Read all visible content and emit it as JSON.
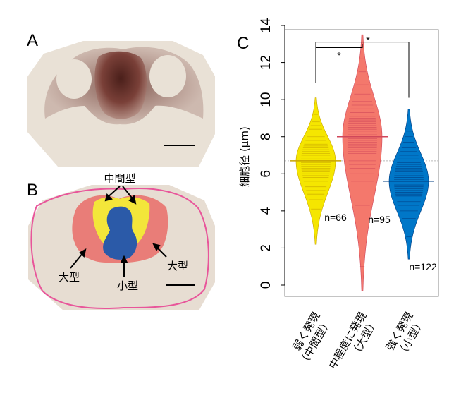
{
  "panels": {
    "a": "A",
    "b": "B",
    "c": "C"
  },
  "panel_b": {
    "label_middle": "中間型",
    "label_large_left": "大型",
    "label_large_right": "大型",
    "label_small": "小型"
  },
  "chart_data": {
    "type": "violin",
    "categories": [
      "弱く発現（中間型）",
      "中程度に発現（大型）",
      "強く発現（小型）"
    ],
    "category_lines": [
      [
        "弱く発現",
        "（中間型）"
      ],
      [
        "中程度に発現",
        "（大型）"
      ],
      [
        "強く発現",
        "（小型）"
      ]
    ],
    "ylabel": "細胞径 (μm)",
    "ylim": [
      0,
      14
    ],
    "yticks": [
      0,
      2,
      4,
      6,
      8,
      10,
      12,
      14
    ],
    "grand_mean": 6.7,
    "series": [
      {
        "category": "弱く発現（中間型）",
        "color": "#f5e600",
        "line_color": "#c8a400",
        "median": 6.7,
        "min": 2.2,
        "max": 10.1,
        "n_label": "n=66",
        "sample": [
          3.4,
          4.1,
          4.6,
          4.9,
          5.1,
          5.3,
          5.5,
          5.6,
          5.8,
          5.9,
          6.0,
          6.1,
          6.2,
          6.3,
          6.4,
          6.5,
          6.6,
          6.7,
          6.8,
          6.9,
          7.0,
          7.1,
          7.2,
          7.3,
          7.4,
          7.5,
          7.6,
          7.8,
          8.0,
          8.2,
          8.4,
          8.6,
          8.8,
          9.2,
          9.6
        ]
      },
      {
        "category": "中程度に発現（大型）",
        "color": "#f4786c",
        "line_color": "#d0475a",
        "median": 8.0,
        "min": -0.3,
        "max": 13.5,
        "n_label": "n=95",
        "sample": [
          1.0,
          4.3,
          5.6,
          6.0,
          6.3,
          6.5,
          6.7,
          6.9,
          7.1,
          7.2,
          7.3,
          7.4,
          7.5,
          7.6,
          7.7,
          7.8,
          7.9,
          8.0,
          8.1,
          8.2,
          8.3,
          8.4,
          8.5,
          8.6,
          8.7,
          8.8,
          8.9,
          9.0,
          9.1,
          9.3,
          9.5,
          9.7,
          9.9,
          10.3,
          10.8,
          11.5,
          12.2
        ]
      },
      {
        "category": "強く発現（小型）",
        "color": "#0077c8",
        "line_color": "#003c80",
        "median": 5.6,
        "min": 1.4,
        "max": 9.5,
        "n_label": "n=122",
        "sample": [
          2.6,
          3.6,
          4.0,
          4.3,
          4.5,
          4.7,
          4.8,
          4.9,
          5.0,
          5.1,
          5.2,
          5.3,
          5.4,
          5.5,
          5.6,
          5.7,
          5.8,
          5.9,
          6.0,
          6.1,
          6.2,
          6.3,
          6.4,
          6.5,
          6.6,
          6.8,
          7.0,
          7.2,
          7.4,
          7.7,
          8.0,
          8.3
        ]
      }
    ],
    "significance": [
      {
        "pair": [
          0,
          1
        ],
        "label": "*"
      },
      {
        "pair": [
          0,
          2
        ],
        "label": "*"
      }
    ]
  }
}
